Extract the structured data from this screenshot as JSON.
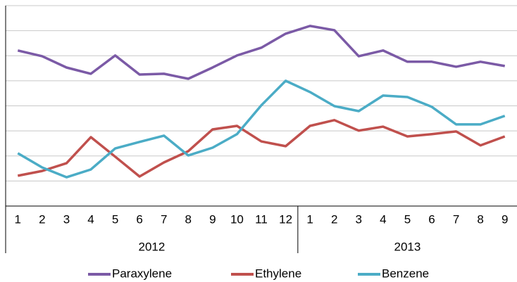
{
  "chart_data": {
    "type": "line",
    "groups": [
      {
        "name": "2012",
        "categories": [
          "1",
          "2",
          "3",
          "4",
          "5",
          "6",
          "7",
          "8",
          "9",
          "10",
          "11",
          "12"
        ]
      },
      {
        "name": "2013",
        "categories": [
          "1",
          "2",
          "3",
          "4",
          "5",
          "6",
          "7",
          "8",
          "9"
        ]
      }
    ],
    "series": [
      {
        "name": "Paraxylene",
        "color": "#7b5aa6",
        "values": [
          6.21,
          5.98,
          5.53,
          5.28,
          6.01,
          5.25,
          5.28,
          5.08,
          5.53,
          6.01,
          6.32,
          6.88,
          7.19,
          7.02,
          5.98,
          6.21,
          5.76,
          5.76,
          5.56,
          5.76,
          5.59
        ]
      },
      {
        "name": "Ethylene",
        "color": "#c0504d",
        "values": [
          1.21,
          1.4,
          1.71,
          2.75,
          1.97,
          1.18,
          1.74,
          2.19,
          3.06,
          3.2,
          2.58,
          2.39,
          3.2,
          3.43,
          3.01,
          3.17,
          2.78,
          2.87,
          2.98,
          2.42,
          2.78
        ]
      },
      {
        "name": "Benzene",
        "color": "#4bacc6",
        "values": [
          2.11,
          1.54,
          1.15,
          1.46,
          2.3,
          2.56,
          2.81,
          2.02,
          2.33,
          2.87,
          4.02,
          5.0,
          4.55,
          3.99,
          3.79,
          4.41,
          4.35,
          3.96,
          3.26,
          3.26,
          3.6
        ]
      }
    ],
    "ylim": [
      0,
      8
    ],
    "yticks": [
      0,
      1,
      2,
      3,
      4,
      5,
      6,
      7,
      8
    ],
    "grid": true,
    "legend": "bottom"
  }
}
